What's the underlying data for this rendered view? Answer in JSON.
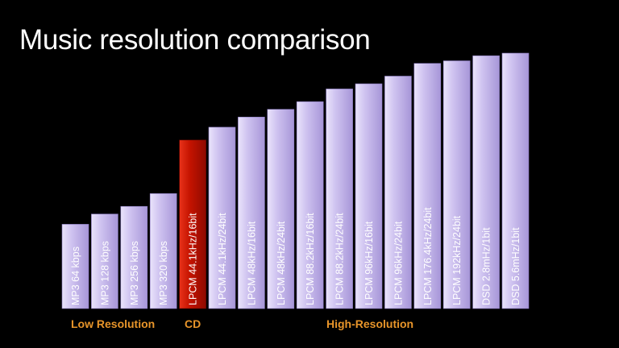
{
  "slide": {
    "title": "Music resolution comparison",
    "groups": {
      "low": "Low Resolution",
      "cd": "CD",
      "high": "High-Resolution"
    }
  },
  "colors": {
    "background": "#000000",
    "bar_regular": "#c4b6ec",
    "bar_highlight": "#cc1400",
    "group_label": "#e8952a"
  },
  "chart_data": {
    "type": "bar",
    "orientation": "vertical",
    "title": "Music resolution comparison",
    "xlabel": "",
    "ylabel": "",
    "ylim": [
      0,
      100
    ],
    "categories": [
      "MP3 64 kbps",
      "MP3 128 kbps",
      "MP3 256 kbps",
      "MP3 320 kbps",
      "LPCM 44.1kHz/16bit",
      "LPCM 44.1kHz/24bit",
      "LPCM 48kHz/16bit",
      "LPCM 48kHz/24bit",
      "LPCM 88.2kHz/16bit",
      "LPCM 88.2kHz/24bit",
      "LPCM 96kHz/16bit",
      "LPCM 96kHz/24bit",
      "LPCM 176.4kHz/24bit",
      "LPCM 192kHz/24bit",
      "DSD 2.8mHz/1bit",
      "DSD 5.6mHz/1bit"
    ],
    "values": [
      33,
      37,
      40,
      45,
      66,
      71,
      75,
      78,
      81,
      86,
      88,
      91,
      96,
      97,
      99,
      100
    ],
    "highlight_index": 4,
    "grid": false,
    "legend": "none"
  }
}
